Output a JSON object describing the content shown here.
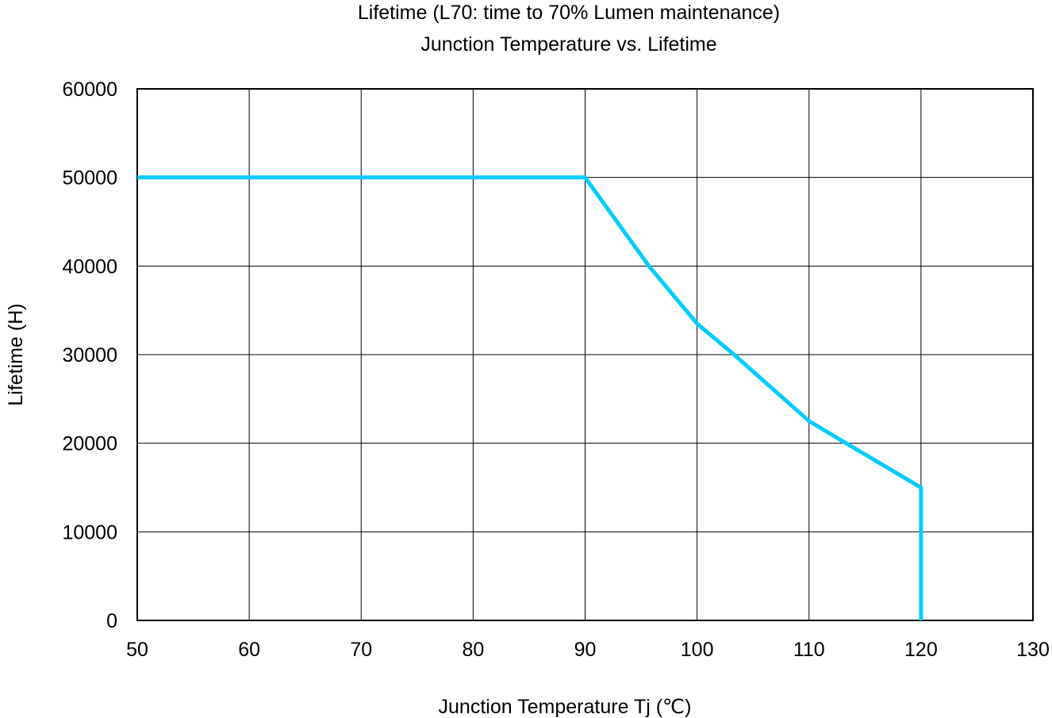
{
  "chart_data": {
    "type": "line",
    "title": "Lifetime (L70: time to 70% Lumen maintenance)",
    "subtitle": "Junction Temperature vs. Lifetime",
    "xlabel": "Junction Temperature Tj (℃)",
    "ylabel": "Lifetime (H)",
    "xlim": [
      50,
      130
    ],
    "ylim": [
      0,
      60000
    ],
    "x_ticks": [
      "50",
      "60",
      "70",
      "80",
      "90",
      "100",
      "110",
      "120",
      "130"
    ],
    "y_ticks": [
      "0",
      "10000",
      "20000",
      "30000",
      "40000",
      "50000",
      "60000"
    ],
    "grid": true,
    "legend": "none",
    "series": [
      {
        "color": "#00ccff",
        "x": [
          50,
          90,
          95.7,
          100,
          103.3,
          110,
          113.3,
          120,
          120
        ],
        "y": [
          50000,
          50000,
          40000,
          33500,
          30000,
          22500,
          20000,
          15000,
          0
        ]
      }
    ]
  }
}
